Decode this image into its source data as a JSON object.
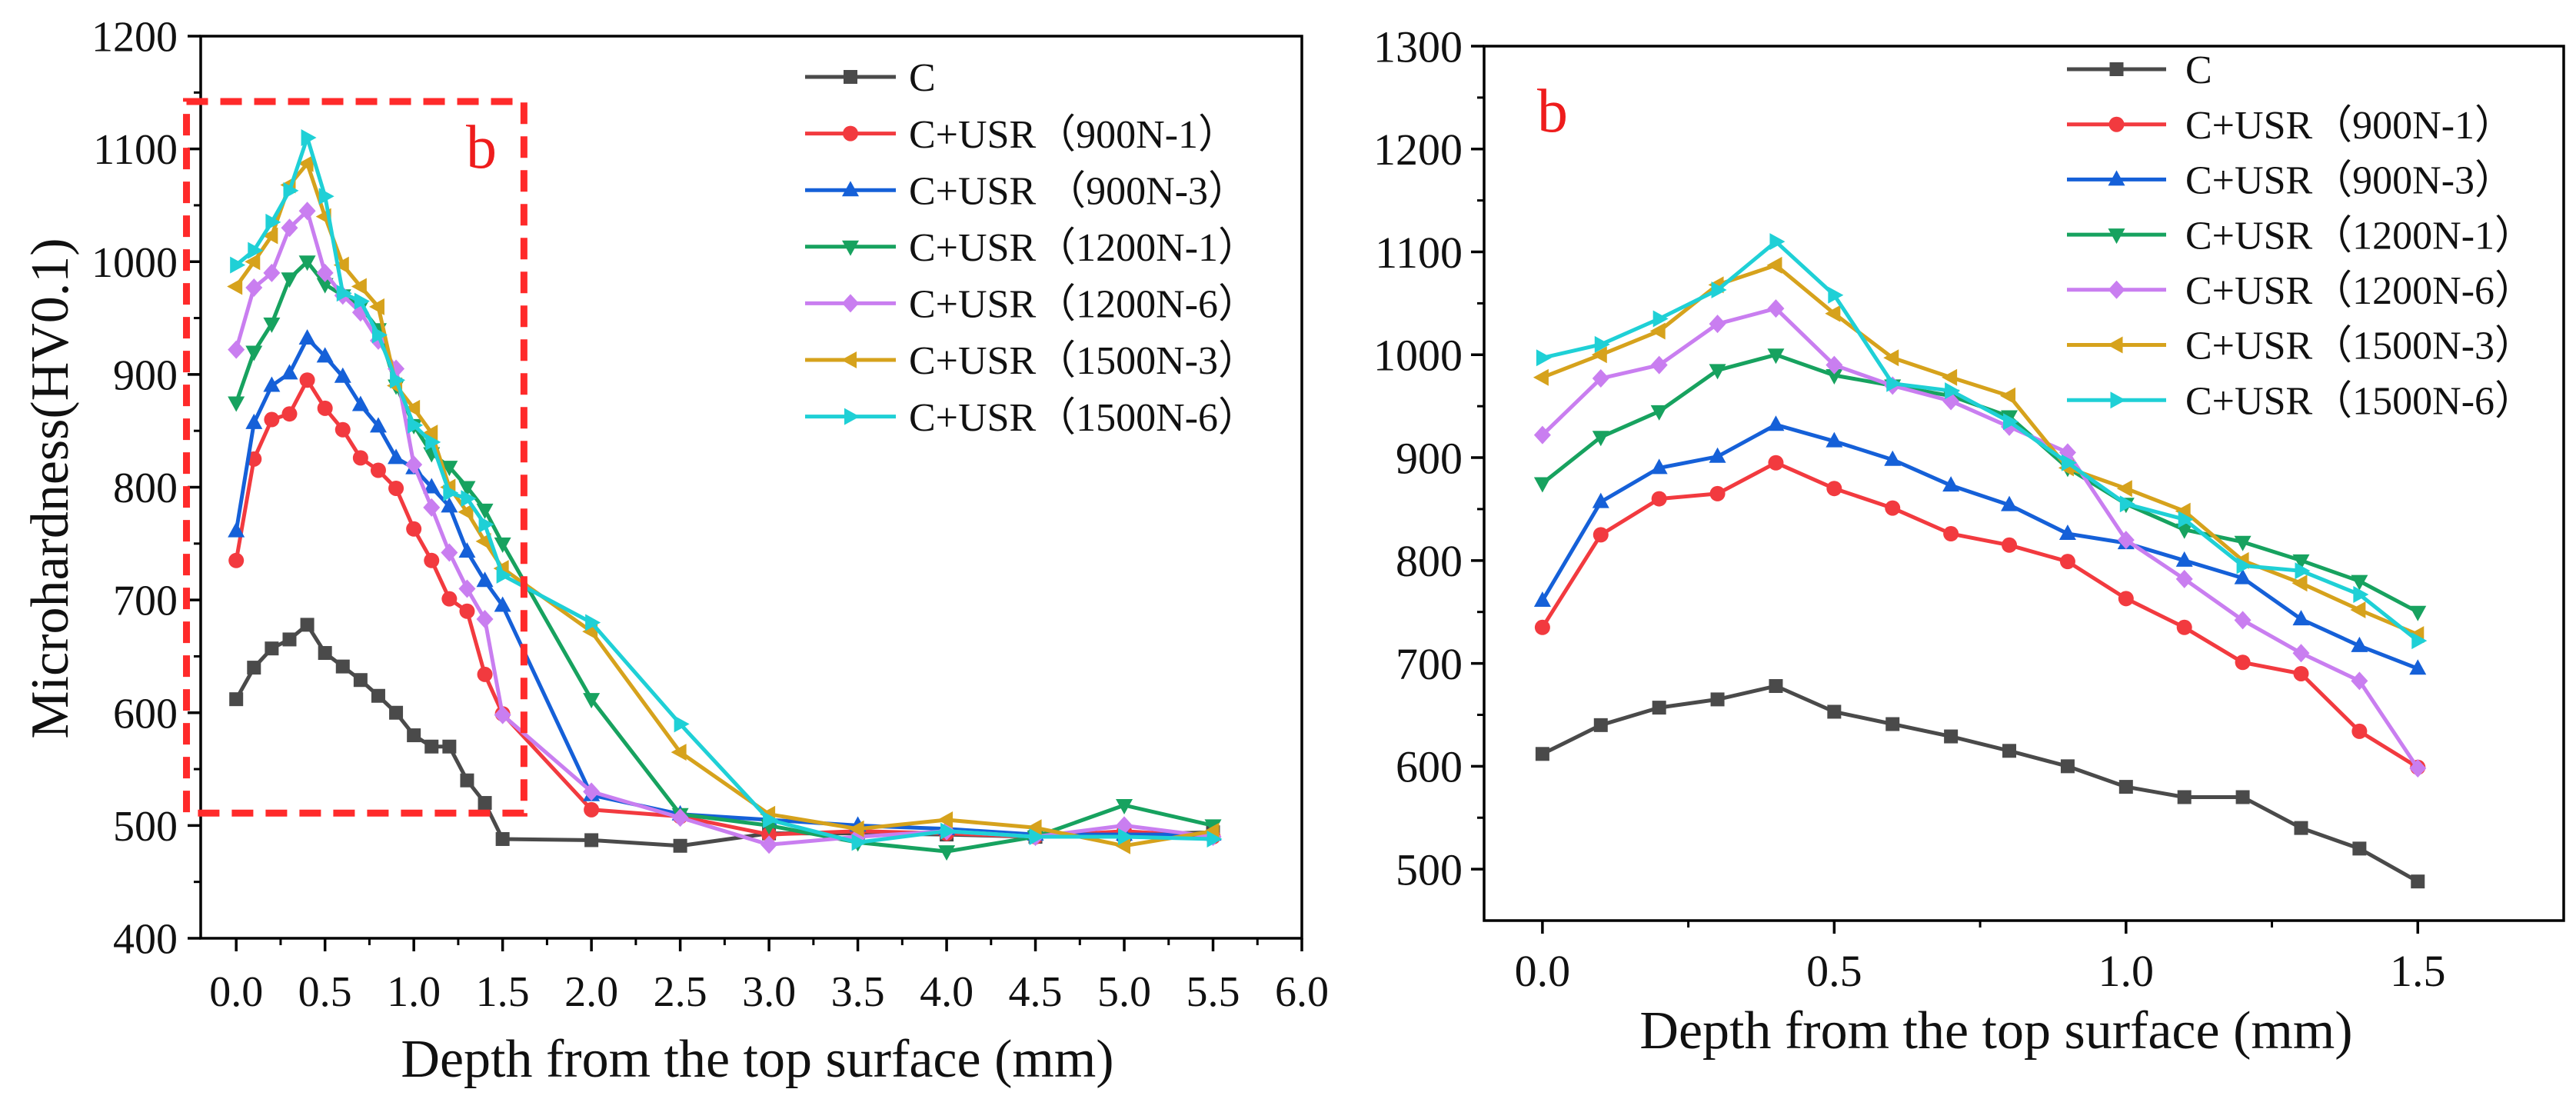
{
  "chart_data": [
    {
      "type": "line",
      "xlabel": "Depth from the top surface (mm)",
      "ylabel": "Microhardness(HV0.1)",
      "xlim": [
        -0.2,
        6.0
      ],
      "ylim": [
        400,
        1200
      ],
      "x_ticks": [
        0,
        0.5,
        1,
        1.5,
        2,
        2.5,
        3,
        3.5,
        4,
        4.5,
        5,
        5.5,
        6
      ],
      "x_tick_labels": [
        "0.0",
        "0.5",
        "1.0",
        "1.5",
        "2.0",
        "2.5",
        "3.0",
        "3.5",
        "4.0",
        "4.5",
        "5.0",
        "5.5",
        "6.0"
      ],
      "y_ticks": [
        400,
        500,
        600,
        700,
        800,
        900,
        1000,
        1100,
        1200
      ],
      "y_tick_labels": [
        "400",
        "500",
        "600",
        "700",
        "800",
        "900",
        "1000",
        "1100",
        "1200"
      ],
      "legend": "top-right",
      "annotation": "b",
      "x": [
        0,
        0.1,
        0.2,
        0.3,
        0.4,
        0.5,
        0.6,
        0.7,
        0.8,
        0.9,
        1.0,
        1.1,
        1.2,
        1.3,
        1.4,
        1.5,
        2.0,
        2.5,
        3.0,
        3.5,
        4.0,
        4.5,
        5.0,
        5.5
      ],
      "series": [
        {
          "name": "C",
          "color": "#4a4a4a",
          "marker": "square",
          "values": [
            612,
            640,
            657,
            665,
            678,
            653,
            641,
            629,
            615,
            600,
            580,
            570,
            570,
            540,
            520,
            488,
            487,
            482,
            493,
            493,
            492,
            490,
            492,
            494
          ]
        },
        {
          "name": "C+USR（900N-1）",
          "color": "#f23a3f",
          "marker": "circle",
          "values": [
            735,
            825,
            860,
            865,
            895,
            870,
            851,
            826,
            815,
            799,
            763,
            735,
            701,
            690,
            634,
            599,
            514,
            508,
            492,
            495,
            493,
            490,
            495,
            490
          ]
        },
        {
          "name": "C+USR （900N-3）",
          "color": "#1560d8",
          "marker": "triangle-up",
          "values": [
            761,
            857,
            890,
            901,
            932,
            916,
            898,
            873,
            854,
            826,
            817,
            800,
            783,
            743,
            717,
            695,
            527,
            510,
            505,
            500,
            497,
            492,
            492,
            492
          ]
        },
        {
          "name": "C+USR（1200N-1）",
          "color": "#17a25f",
          "marker": "triangle-down",
          "values": [
            875,
            920,
            945,
            985,
            1000,
            980,
            970,
            960,
            940,
            890,
            855,
            830,
            818,
            800,
            780,
            750,
            612,
            510,
            500,
            485,
            477,
            490,
            518,
            500
          ]
        },
        {
          "name": "C+USR（1200N-6）",
          "color": "#c97ef0",
          "marker": "diamond",
          "values": [
            922,
            977,
            990,
            1030,
            1045,
            990,
            970,
            955,
            930,
            905,
            820,
            782,
            742,
            710,
            683,
            598,
            530,
            507,
            483,
            490,
            495,
            490,
            500,
            490
          ]
        },
        {
          "name": "C+USR（1500N-3）",
          "color": "#d6a21c",
          "marker": "triangle-left",
          "values": [
            978,
            1000,
            1023,
            1068,
            1087,
            1040,
            997,
            978,
            960,
            890,
            870,
            848,
            800,
            778,
            752,
            728,
            672,
            565,
            510,
            497,
            505,
            498,
            482,
            495
          ]
        },
        {
          "name": "C+USR（1500N-6）",
          "color": "#1fd0d6",
          "marker": "triangle-right",
          "values": [
            997,
            1010,
            1035,
            1063,
            1110,
            1058,
            972,
            965,
            935,
            895,
            855,
            840,
            795,
            790,
            767,
            722,
            680,
            590,
            505,
            485,
            495,
            490,
            490,
            488
          ]
        }
      ]
    },
    {
      "type": "line",
      "xlabel": "Depth from the top surface (mm)",
      "xlim": [
        -0.1,
        1.75
      ],
      "ylim": [
        450,
        1300
      ],
      "x_ticks": [
        0,
        0.5,
        1,
        1.5
      ],
      "x_tick_labels": [
        "0.0",
        "0.5",
        "1.0",
        "1.5"
      ],
      "y_ticks": [
        500,
        600,
        700,
        800,
        900,
        1000,
        1100,
        1200,
        1300
      ],
      "y_tick_labels": [
        "500",
        "600",
        "700",
        "800",
        "900",
        "1000",
        "1100",
        "1200",
        "1300"
      ],
      "legend": "top-right",
      "annotation": "b",
      "x": [
        0,
        0.1,
        0.2,
        0.3,
        0.4,
        0.5,
        0.6,
        0.7,
        0.8,
        0.9,
        1.0,
        1.1,
        1.2,
        1.3,
        1.4,
        1.5
      ],
      "series": [
        {
          "name": "C",
          "color": "#4a4a4a",
          "marker": "square",
          "values": [
            612,
            640,
            657,
            665,
            678,
            653,
            641,
            629,
            615,
            600,
            580,
            570,
            570,
            540,
            520,
            488
          ]
        },
        {
          "name": "C+USR（900N-1）",
          "color": "#f23a3f",
          "marker": "circle",
          "values": [
            735,
            825,
            860,
            865,
            895,
            870,
            851,
            826,
            815,
            799,
            763,
            735,
            701,
            690,
            634,
            599
          ]
        },
        {
          "name": "C+USR（900N-3）",
          "color": "#1560d8",
          "marker": "triangle-up",
          "values": [
            761,
            857,
            890,
            901,
            932,
            916,
            898,
            873,
            854,
            826,
            817,
            800,
            783,
            743,
            717,
            695
          ]
        },
        {
          "name": "C+USR（1200N-1）",
          "color": "#17a25f",
          "marker": "triangle-down",
          "values": [
            875,
            920,
            945,
            985,
            1000,
            980,
            970,
            960,
            940,
            890,
            855,
            830,
            818,
            800,
            780,
            750
          ]
        },
        {
          "name": "C+USR（1200N-6）",
          "color": "#c97ef0",
          "marker": "diamond",
          "values": [
            922,
            977,
            990,
            1030,
            1045,
            990,
            970,
            955,
            930,
            905,
            820,
            782,
            742,
            710,
            683,
            598
          ]
        },
        {
          "name": "C+USR（1500N-3）",
          "color": "#d6a21c",
          "marker": "triangle-left",
          "values": [
            978,
            1000,
            1023,
            1068,
            1087,
            1040,
            997,
            978,
            960,
            890,
            870,
            848,
            800,
            778,
            752,
            728
          ]
        },
        {
          "name": "C+USR（1500N-6）",
          "color": "#1fd0d6",
          "marker": "triangle-right",
          "values": [
            997,
            1010,
            1035,
            1063,
            1110,
            1058,
            972,
            965,
            935,
            895,
            855,
            840,
            795,
            790,
            767,
            722
          ]
        }
      ]
    }
  ]
}
